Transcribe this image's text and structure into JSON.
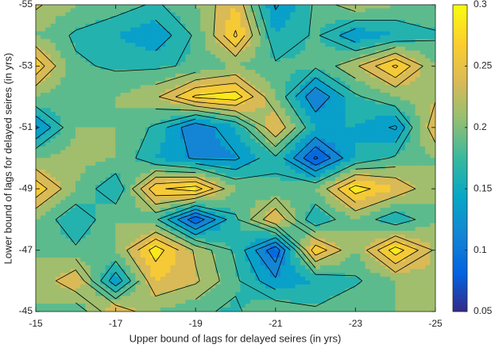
{
  "chart_data": {
    "type": "contour",
    "xlabel": "Upper bound of lags for delayed seires (in yrs)",
    "ylabel": "Lower bound of lags for delayed seires (in yrs)",
    "x": [
      -15,
      -16,
      -17,
      -18,
      -19,
      -20,
      -21,
      -22,
      -23,
      -24,
      -25
    ],
    "y": [
      -55,
      -54,
      -53,
      -52,
      -51,
      -50,
      -49,
      -48,
      -47,
      -46,
      -45
    ],
    "z": [
      [
        0.23,
        0.2,
        0.19,
        0.17,
        0.2,
        0.25,
        0.12,
        0.18,
        0.22,
        0.2,
        0.2
      ],
      [
        0.2,
        0.17,
        0.15,
        0.13,
        0.18,
        0.28,
        0.15,
        0.18,
        0.13,
        0.15,
        0.17
      ],
      [
        0.27,
        0.18,
        0.17,
        0.17,
        0.18,
        0.2,
        0.18,
        0.18,
        0.22,
        0.28,
        0.2
      ],
      [
        0.2,
        0.18,
        0.2,
        0.22,
        0.28,
        0.29,
        0.2,
        0.1,
        0.17,
        0.2,
        0.22
      ],
      [
        0.12,
        0.2,
        0.2,
        0.17,
        0.1,
        0.15,
        0.25,
        0.15,
        0.15,
        0.12,
        0.25
      ],
      [
        0.2,
        0.21,
        0.2,
        0.15,
        0.12,
        0.12,
        0.17,
        0.07,
        0.15,
        0.18,
        0.2
      ],
      [
        0.27,
        0.2,
        0.15,
        0.27,
        0.29,
        0.2,
        0.18,
        0.2,
        0.29,
        0.25,
        0.2
      ],
      [
        0.2,
        0.15,
        0.2,
        0.18,
        0.08,
        0.17,
        0.25,
        0.15,
        0.2,
        0.15,
        0.2
      ],
      [
        0.2,
        0.18,
        0.2,
        0.29,
        0.22,
        0.17,
        0.08,
        0.27,
        0.2,
        0.29,
        0.22
      ],
      [
        0.2,
        0.25,
        0.13,
        0.25,
        0.23,
        0.18,
        0.13,
        0.15,
        0.17,
        0.2,
        0.22
      ],
      [
        0.2,
        0.18,
        0.25,
        0.2,
        0.18,
        0.17,
        0.2,
        0.18,
        0.2,
        0.2,
        0.2
      ]
    ],
    "xlim": [
      -15,
      -25
    ],
    "xticks": [
      -15,
      -17,
      -19,
      -21,
      -23,
      -25
    ],
    "ylim": [
      -45,
      -55
    ],
    "yticks": [
      -55,
      -53,
      -51,
      -49,
      -47,
      -45
    ],
    "clim": [
      0.05,
      0.3
    ],
    "cticks": [
      0.05,
      0.1,
      0.15,
      0.2,
      0.25,
      0.3
    ],
    "levels": [
      0.075,
      0.1,
      0.125,
      0.15,
      0.175,
      0.2,
      0.225,
      0.25,
      0.275
    ],
    "colormap": [
      "#352a87",
      "#0363e1",
      "#1485d4",
      "#06a7c6",
      "#38b99e",
      "#92bf73",
      "#d9ba56",
      "#fcce2e",
      "#f9fb0e"
    ]
  }
}
